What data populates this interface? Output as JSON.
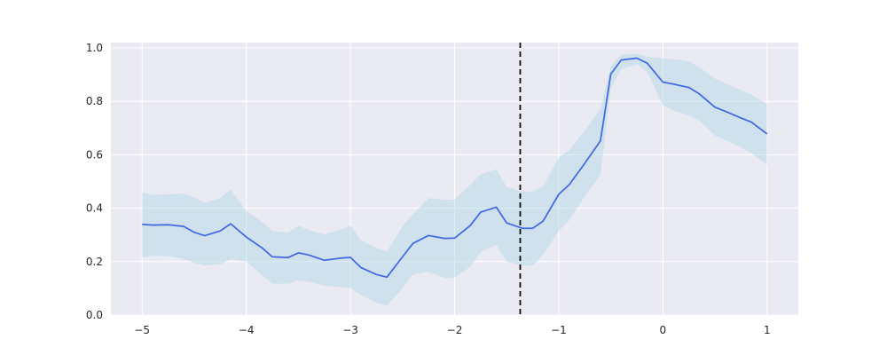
{
  "chart_data": {
    "type": "line",
    "title": "",
    "xlabel": "",
    "ylabel": "",
    "xlim": [
      -5.3,
      1.3
    ],
    "ylim": [
      0.0,
      1.02
    ],
    "grid": true,
    "colors": {
      "background": "#eaeaf2",
      "grid": "#ffffff",
      "line": "#4169e1",
      "band": "#add8e6",
      "vline": "#000000"
    },
    "x_ticks": [
      -5,
      -4,
      -3,
      -2,
      -1,
      0,
      1
    ],
    "x_tick_labels": [
      "−5",
      "−4",
      "−3",
      "−2",
      "−1",
      "0",
      "1"
    ],
    "y_ticks": [
      0.0,
      0.2,
      0.4,
      0.6,
      0.8,
      1.0
    ],
    "y_tick_labels": [
      "0.0",
      "0.2",
      "0.4",
      "0.6",
      "0.8",
      "1.0"
    ],
    "vline_x": -1.37,
    "series": [
      {
        "x": [
          -5.0,
          -4.9,
          -4.75,
          -4.6,
          -4.5,
          -4.4,
          -4.25,
          -4.15,
          -4.0,
          -3.85,
          -3.75,
          -3.6,
          -3.5,
          -3.4,
          -3.25,
          -3.1,
          -3.0,
          -2.9,
          -2.75,
          -2.65,
          -2.5,
          -2.4,
          -2.25,
          -2.1,
          -2.0,
          -1.85,
          -1.75,
          -1.6,
          -1.5,
          -1.35,
          -1.25,
          -1.15,
          -1.0,
          -0.9,
          -0.75,
          -0.6,
          -0.5,
          -0.4,
          -0.25,
          -0.15,
          0.0,
          0.1,
          0.25,
          0.35,
          0.5,
          0.6,
          0.75,
          0.85,
          1.0
        ],
        "y": [
          0.34,
          0.337,
          0.338,
          0.332,
          0.31,
          0.297,
          0.315,
          0.342,
          0.292,
          0.252,
          0.218,
          0.215,
          0.233,
          0.225,
          0.205,
          0.213,
          0.216,
          0.178,
          0.152,
          0.142,
          0.218,
          0.268,
          0.298,
          0.287,
          0.288,
          0.335,
          0.385,
          0.404,
          0.345,
          0.325,
          0.325,
          0.352,
          0.452,
          0.488,
          0.568,
          0.652,
          0.902,
          0.955,
          0.962,
          0.943,
          0.872,
          0.865,
          0.852,
          0.828,
          0.778,
          0.763,
          0.738,
          0.722,
          0.678
        ],
        "lower": [
          0.215,
          0.222,
          0.22,
          0.21,
          0.195,
          0.185,
          0.19,
          0.21,
          0.2,
          0.15,
          0.118,
          0.117,
          0.13,
          0.125,
          0.11,
          0.105,
          0.1,
          0.075,
          0.045,
          0.035,
          0.1,
          0.152,
          0.162,
          0.14,
          0.14,
          0.18,
          0.235,
          0.262,
          0.2,
          0.185,
          0.185,
          0.225,
          0.315,
          0.355,
          0.445,
          0.525,
          0.85,
          0.92,
          0.94,
          0.91,
          0.785,
          0.765,
          0.748,
          0.728,
          0.672,
          0.655,
          0.628,
          0.605,
          0.562
        ],
        "upper": [
          0.46,
          0.45,
          0.452,
          0.455,
          0.44,
          0.42,
          0.438,
          0.47,
          0.39,
          0.35,
          0.315,
          0.308,
          0.335,
          0.318,
          0.302,
          0.32,
          0.335,
          0.28,
          0.252,
          0.238,
          0.333,
          0.378,
          0.438,
          0.432,
          0.432,
          0.488,
          0.528,
          0.545,
          0.48,
          0.462,
          0.462,
          0.482,
          0.59,
          0.618,
          0.69,
          0.772,
          0.932,
          0.975,
          0.978,
          0.968,
          0.962,
          0.958,
          0.95,
          0.928,
          0.885,
          0.868,
          0.842,
          0.825,
          0.79
        ]
      }
    ]
  }
}
